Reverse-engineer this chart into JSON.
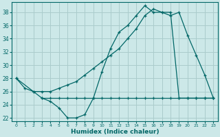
{
  "bg_color": "#cce8e8",
  "grid_color": "#aacccc",
  "line_color": "#006666",
  "xlabel": "Humidex (Indice chaleur)",
  "xlim": [
    -0.5,
    23.5
  ],
  "ylim": [
    21.5,
    39.5
  ],
  "yticks": [
    22,
    24,
    26,
    28,
    30,
    32,
    34,
    36,
    38
  ],
  "xticks": [
    0,
    1,
    2,
    3,
    4,
    5,
    6,
    7,
    8,
    9,
    10,
    11,
    12,
    13,
    14,
    15,
    16,
    17,
    18,
    19,
    20,
    21,
    22,
    23
  ],
  "line1_x": [
    0,
    1,
    2,
    3,
    4,
    5,
    6,
    7,
    8,
    9,
    10,
    11,
    12,
    13,
    14,
    15,
    16,
    17,
    18,
    19,
    20,
    21,
    22,
    23
  ],
  "line1_y": [
    28,
    26.5,
    26,
    25,
    24.5,
    23.5,
    22,
    22,
    22.5,
    25,
    29,
    32.5,
    35,
    36,
    37.5,
    39,
    38,
    38,
    38,
    25,
    25,
    25,
    25,
    25
  ],
  "line2_x": [
    0,
    2,
    3,
    4,
    5,
    6,
    7,
    8,
    9,
    10,
    11,
    12,
    13,
    14,
    15,
    16,
    17,
    18,
    19,
    20,
    21,
    22,
    23
  ],
  "line2_y": [
    28,
    26,
    26,
    26,
    26.5,
    27,
    27.5,
    28.5,
    29.5,
    30.5,
    31.5,
    32.5,
    34,
    35.5,
    37.5,
    38.5,
    38,
    37.5,
    38,
    34.5,
    31.5,
    28.5,
    25
  ],
  "line3_x": [
    3,
    4,
    5,
    6,
    7,
    8,
    9,
    10,
    11,
    12,
    13,
    14,
    15,
    16,
    17,
    18,
    19,
    20,
    21,
    22,
    23
  ],
  "line3_y": [
    25,
    25,
    25,
    25,
    25,
    25,
    25,
    25,
    25,
    25,
    25,
    25,
    25,
    25,
    25,
    25,
    25,
    25,
    25,
    25,
    25
  ]
}
